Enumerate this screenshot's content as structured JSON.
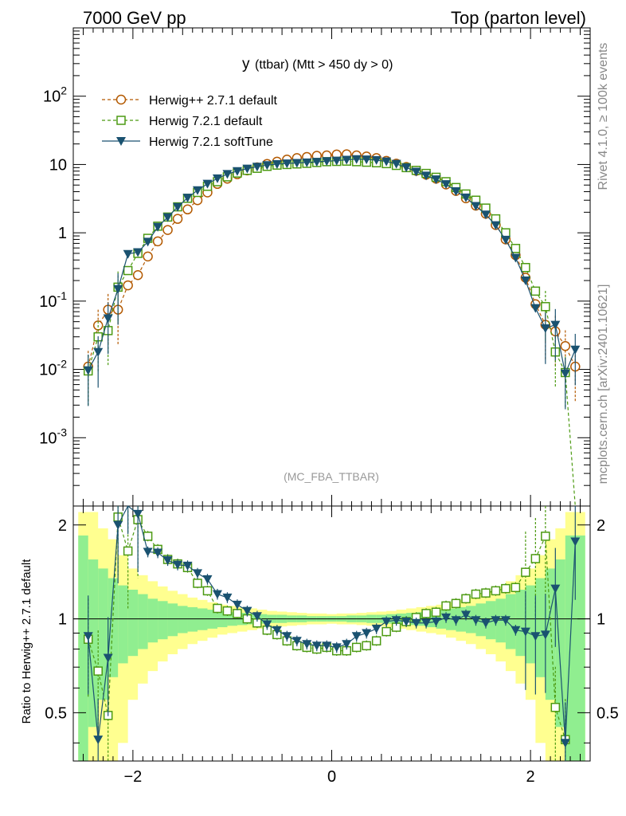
{
  "header": {
    "left": "7000 GeV pp",
    "right": "Top (parton level)"
  },
  "side_labels": {
    "rivet": "Rivet 4.1.0, ≥ 100k events",
    "mcplots": "mcplots.cern.ch [arXiv:2401.10621]"
  },
  "chart_data": [
    {
      "type": "line",
      "panel": "main",
      "title": "y (ttbar) (Mtt > 450 dy > 0)",
      "title_main": "y",
      "title_rest": "(ttbar) (Mtt > 450 dy > 0)",
      "watermark": "(MC_FBA_TTBAR)",
      "xlim": [
        -2.6,
        2.6
      ],
      "yscale": "log",
      "ylim": [
        0.0001,
        1000
      ],
      "y_tick_labels": [
        "10^-3",
        "10^-2",
        "10^-1",
        "1",
        "10",
        "10^2"
      ],
      "x": [
        -2.45,
        -2.35,
        -2.25,
        -2.15,
        -2.05,
        -1.95,
        -1.85,
        -1.75,
        -1.65,
        -1.55,
        -1.45,
        -1.35,
        -1.25,
        -1.15,
        -1.05,
        -0.95,
        -0.85,
        -0.75,
        -0.65,
        -0.55,
        -0.45,
        -0.35,
        -0.25,
        -0.15,
        -0.05,
        0.05,
        0.15,
        0.25,
        0.35,
        0.45,
        0.55,
        0.65,
        0.75,
        0.85,
        0.95,
        1.05,
        1.15,
        1.25,
        1.35,
        1.45,
        1.55,
        1.65,
        1.75,
        1.85,
        1.95,
        2.05,
        2.15,
        2.25,
        2.35,
        2.45
      ],
      "series": [
        {
          "name": "Herwig++ 2.7.1 default",
          "color": "#b35900",
          "marker": "circle-open",
          "line": "dashed",
          "values": [
            0.011,
            0.044,
            0.075,
            0.075,
            0.17,
            0.24,
            0.45,
            0.75,
            1.1,
            1.6,
            2.2,
            3.0,
            3.9,
            5.2,
            6.2,
            7.2,
            8.2,
            9.1,
            10.2,
            11.0,
            11.8,
            12.4,
            12.9,
            13.4,
            13.6,
            14.0,
            14.1,
            13.6,
            13.1,
            12.4,
            11.3,
            10.3,
            9.2,
            8.1,
            7.1,
            6.2,
            5.1,
            4.1,
            3.2,
            2.5,
            1.9,
            1.3,
            0.8,
            0.47,
            0.22,
            0.09,
            0.045,
            0.036,
            0.022,
            0.011
          ]
        },
        {
          "name": "Herwig 7.2.1 default",
          "color": "#4c9a12",
          "marker": "square-open",
          "line": "dashed",
          "values": [
            0.0095,
            0.03,
            0.037,
            0.16,
            0.28,
            0.5,
            0.83,
            1.25,
            1.7,
            2.4,
            3.2,
            3.9,
            4.8,
            5.6,
            6.6,
            7.5,
            8.2,
            8.8,
            9.4,
            9.8,
            10.0,
            10.2,
            10.4,
            10.7,
            11.0,
            11.1,
            11.2,
            11.0,
            10.8,
            10.6,
            10.3,
            9.7,
            9.0,
            8.2,
            7.4,
            6.5,
            5.6,
            4.6,
            3.7,
            3.0,
            2.3,
            1.6,
            1.0,
            0.59,
            0.31,
            0.14,
            0.083,
            0.018,
            0.009,
            0.0
          ]
        },
        {
          "name": "Herwig 7.2.1 softTune",
          "color": "#1a5270",
          "marker": "triangle-down",
          "line": "solid",
          "values": [
            0.0097,
            0.018,
            0.056,
            0.15,
            0.49,
            0.52,
            0.74,
            1.22,
            1.69,
            2.39,
            3.26,
            4.19,
            5.22,
            6.26,
            7.25,
            8.01,
            8.7,
            9.28,
            9.79,
            10.13,
            10.35,
            10.54,
            10.72,
            10.93,
            11.17,
            11.39,
            11.72,
            11.97,
            11.85,
            11.59,
            11.06,
            10.21,
            9.05,
            7.85,
            6.87,
            6.05,
            5.15,
            4.06,
            3.28,
            2.47,
            1.85,
            1.29,
            0.79,
            0.43,
            0.2,
            0.079,
            0.04,
            0.045,
            0.0087,
            0.0195
          ]
        }
      ],
      "legend_position": "top-left"
    },
    {
      "type": "line",
      "panel": "ratio",
      "ylabel": "Ratio to Herwig++ 2.7.1 default",
      "xlim": [
        -2.6,
        2.6
      ],
      "ylim": [
        0.35,
        2.3
      ],
      "x_tick_labels": [
        "−2",
        "0",
        "2"
      ],
      "x_tick_values": [
        -2,
        0,
        2
      ],
      "y_tick_labels": [
        "0.5",
        "1",
        "2"
      ],
      "y_tick_values": [
        0.5,
        1,
        2
      ],
      "reference_line": 1,
      "band_green_halfwidth": [
        0.85,
        0.55,
        0.45,
        0.35,
        0.28,
        0.24,
        0.2,
        0.16,
        0.14,
        0.12,
        0.1,
        0.09,
        0.08,
        0.07,
        0.06,
        0.05,
        0.045,
        0.04,
        0.035,
        0.03,
        0.03,
        0.025,
        0.025,
        0.02,
        0.02,
        0.02,
        0.02,
        0.025,
        0.025,
        0.03,
        0.03,
        0.035,
        0.04,
        0.045,
        0.05,
        0.06,
        0.07,
        0.08,
        0.09,
        0.1,
        0.12,
        0.14,
        0.16,
        0.2,
        0.24,
        0.28,
        0.35,
        0.45,
        0.55,
        0.85
      ],
      "band_yellow_halfwidth": [
        1.2,
        0.95,
        0.8,
        0.6,
        0.45,
        0.38,
        0.32,
        0.27,
        0.23,
        0.2,
        0.17,
        0.15,
        0.13,
        0.11,
        0.1,
        0.09,
        0.08,
        0.07,
        0.06,
        0.055,
        0.05,
        0.045,
        0.04,
        0.04,
        0.035,
        0.035,
        0.04,
        0.04,
        0.045,
        0.05,
        0.055,
        0.06,
        0.07,
        0.08,
        0.09,
        0.1,
        0.11,
        0.13,
        0.15,
        0.17,
        0.2,
        0.23,
        0.27,
        0.32,
        0.38,
        0.45,
        0.6,
        0.8,
        0.95,
        1.2
      ],
      "series": [
        {
          "name": "Herwig 7.2.1 default",
          "color": "#4c9a12",
          "values": [
            0.86,
            0.68,
            0.49,
            2.12,
            1.65,
            2.08,
            1.84,
            1.67,
            1.55,
            1.5,
            1.46,
            1.3,
            1.23,
            1.08,
            1.06,
            1.04,
            1.0,
            0.97,
            0.92,
            0.89,
            0.85,
            0.82,
            0.81,
            0.8,
            0.81,
            0.79,
            0.79,
            0.81,
            0.82,
            0.85,
            0.91,
            0.94,
            0.98,
            1.01,
            1.04,
            1.05,
            1.1,
            1.12,
            1.16,
            1.2,
            1.21,
            1.23,
            1.25,
            1.26,
            1.41,
            1.56,
            1.84,
            0.52,
            0.41,
            null
          ]
        },
        {
          "name": "Herwig 7.2.1 softTune",
          "color": "#1a5270",
          "values": [
            0.88,
            0.41,
            0.75,
            2.0,
            2.88,
            2.17,
            1.64,
            1.63,
            1.54,
            1.49,
            1.48,
            1.4,
            1.34,
            1.2,
            1.17,
            1.11,
            1.06,
            1.02,
            0.96,
            0.92,
            0.88,
            0.85,
            0.83,
            0.82,
            0.82,
            0.81,
            0.83,
            0.88,
            0.9,
            0.93,
            0.98,
            0.99,
            0.98,
            0.97,
            0.97,
            0.98,
            1.01,
            0.99,
            1.03,
            0.99,
            0.97,
            0.99,
            0.99,
            0.92,
            0.91,
            0.88,
            0.89,
            1.25,
            0.4,
            1.77
          ]
        }
      ]
    }
  ]
}
